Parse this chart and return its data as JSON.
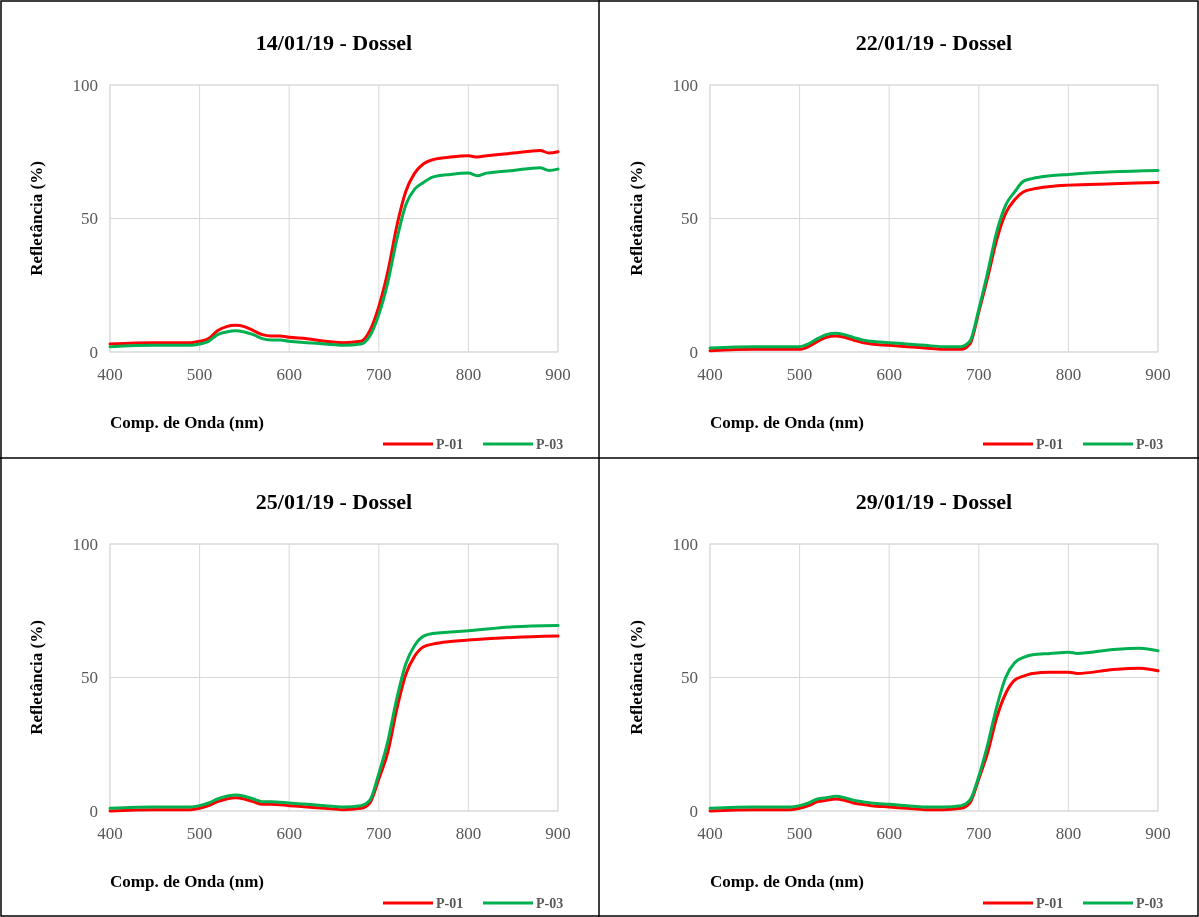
{
  "chart_data": [
    {
      "type": "line",
      "title": "14/01/19 - Dossel",
      "xlabel": "Comp. de Onda (nm)",
      "ylabel": "Refletância (%)",
      "xlim": [
        400,
        900
      ],
      "ylim": [
        0,
        100
      ],
      "xticks": [
        400,
        500,
        600,
        700,
        800,
        900
      ],
      "yticks": [
        0,
        50,
        100
      ],
      "grid": true,
      "legend": "bottom right",
      "line_style": "solid",
      "x": [
        400,
        450,
        490,
        500,
        510,
        520,
        530,
        540,
        550,
        560,
        570,
        580,
        590,
        600,
        620,
        640,
        660,
        680,
        690,
        700,
        710,
        720,
        730,
        740,
        750,
        760,
        780,
        800,
        810,
        820,
        850,
        880,
        890,
        900
      ],
      "series": [
        {
          "name": "P-01",
          "color": "#ff0000",
          "values": [
            3,
            3.5,
            3.5,
            4,
            5,
            8,
            9.5,
            10,
            9.5,
            8,
            6.5,
            6,
            6,
            5.5,
            5,
            4,
            3.5,
            4,
            8,
            17,
            30,
            47,
            60,
            67,
            70.5,
            72,
            73,
            73.5,
            73,
            73.5,
            74.5,
            75.5,
            74.5,
            75
          ]
        },
        {
          "name": "P-03",
          "color": "#00b050",
          "values": [
            2,
            2.5,
            2.5,
            3,
            4,
            6.5,
            7.5,
            8,
            7.5,
            6.5,
            5,
            4.5,
            4.5,
            4,
            3.5,
            3,
            2.5,
            3,
            6,
            14,
            26,
            42,
            55,
            61,
            63.5,
            65.5,
            66.5,
            67,
            66,
            67,
            68,
            69,
            68,
            68.5
          ]
        }
      ]
    },
    {
      "type": "line",
      "title": "22/01/19 - Dossel",
      "xlabel": "Comp. de Onda (nm)",
      "ylabel": "Refletância (%)",
      "xlim": [
        400,
        900
      ],
      "ylim": [
        0,
        100
      ],
      "xticks": [
        400,
        500,
        600,
        700,
        800,
        900
      ],
      "yticks": [
        0,
        50,
        100
      ],
      "grid": true,
      "legend": "bottom right",
      "line_style": "solid",
      "x": [
        400,
        450,
        490,
        500,
        510,
        520,
        530,
        540,
        550,
        560,
        570,
        580,
        600,
        620,
        640,
        660,
        680,
        690,
        700,
        710,
        720,
        730,
        740,
        750,
        760,
        780,
        800,
        850,
        900
      ],
      "series": [
        {
          "name": "P-01",
          "color": "#ff0000",
          "values": [
            0.5,
            1,
            1,
            1,
            2,
            4,
            5.5,
            6,
            5.5,
            4.5,
            3.5,
            3,
            2.5,
            2,
            1.5,
            1,
            1,
            3,
            15,
            28,
            42,
            52,
            57,
            60,
            61,
            62,
            62.5,
            63,
            63.5
          ]
        },
        {
          "name": "P-03",
          "color": "#00b050",
          "values": [
            1.5,
            2,
            2,
            2,
            3,
            5,
            6.5,
            7,
            6.5,
            5.5,
            4.5,
            4,
            3.5,
            3,
            2.5,
            2,
            2,
            4,
            16,
            30,
            45,
            55,
            60,
            64,
            65,
            66,
            66.5,
            67.5,
            68
          ]
        }
      ]
    },
    {
      "type": "line",
      "title": "25/01/19 - Dossel",
      "xlabel": "Comp. de Onda (nm)",
      "ylabel": "Refletância (%)",
      "xlim": [
        400,
        900
      ],
      "ylim": [
        0,
        100
      ],
      "xticks": [
        400,
        500,
        600,
        700,
        800,
        900
      ],
      "yticks": [
        0,
        50,
        100
      ],
      "grid": true,
      "legend": "bottom right",
      "line_style": "solid",
      "x": [
        400,
        450,
        490,
        500,
        510,
        520,
        530,
        540,
        550,
        560,
        570,
        580,
        600,
        620,
        640,
        660,
        680,
        690,
        700,
        710,
        720,
        730,
        740,
        750,
        760,
        780,
        800,
        850,
        900
      ],
      "series": [
        {
          "name": "P-01",
          "color": "#ff0000",
          "values": [
            0,
            0.5,
            0.5,
            1,
            2,
            3.5,
            4.5,
            5,
            4.5,
            3.5,
            2.5,
            2.5,
            2,
            1.5,
            1,
            0.5,
            1,
            3,
            12,
            22,
            38,
            51,
            58,
            61.5,
            62.5,
            63.5,
            64,
            65,
            65.5
          ]
        },
        {
          "name": "P-03",
          "color": "#00b050",
          "values": [
            1,
            1.5,
            1.5,
            2,
            3,
            4.5,
            5.5,
            6,
            5.5,
            4.5,
            3.5,
            3.5,
            3,
            2.5,
            2,
            1.5,
            2,
            4,
            14,
            26,
            42,
            55,
            62,
            65.5,
            66.5,
            67,
            67.5,
            69,
            69.5
          ]
        }
      ]
    },
    {
      "type": "line",
      "title": "29/01/19 - Dossel",
      "xlabel": "Comp. de Onda (nm)",
      "ylabel": "Refletância (%)",
      "xlim": [
        400,
        900
      ],
      "ylim": [
        0,
        100
      ],
      "xticks": [
        400,
        500,
        600,
        700,
        800,
        900
      ],
      "yticks": [
        0,
        50,
        100
      ],
      "grid": true,
      "legend": "bottom right",
      "line_style": "solid",
      "x": [
        400,
        450,
        490,
        500,
        510,
        520,
        530,
        540,
        550,
        560,
        570,
        580,
        600,
        620,
        640,
        660,
        680,
        690,
        700,
        710,
        720,
        730,
        740,
        750,
        760,
        780,
        800,
        810,
        850,
        880,
        900
      ],
      "series": [
        {
          "name": "P-01",
          "color": "#ff0000",
          "values": [
            0,
            0.5,
            0.5,
            1,
            2,
            3.5,
            4,
            4.5,
            4,
            3,
            2.5,
            2,
            1.5,
            1,
            0.5,
            0.5,
            1,
            3,
            12,
            22,
            35,
            44,
            49,
            50.5,
            51.5,
            52,
            52,
            51.5,
            53,
            53.5,
            52.5
          ]
        },
        {
          "name": "P-03",
          "color": "#00b050",
          "values": [
            1,
            1.5,
            1.5,
            2,
            3,
            4.5,
            5,
            5.5,
            5,
            4,
            3.5,
            3,
            2.5,
            2,
            1.5,
            1.5,
            2,
            4,
            13,
            25,
            39,
            50,
            55.5,
            57.5,
            58.5,
            59,
            59.5,
            59,
            60.5,
            61,
            60
          ]
        }
      ]
    }
  ]
}
